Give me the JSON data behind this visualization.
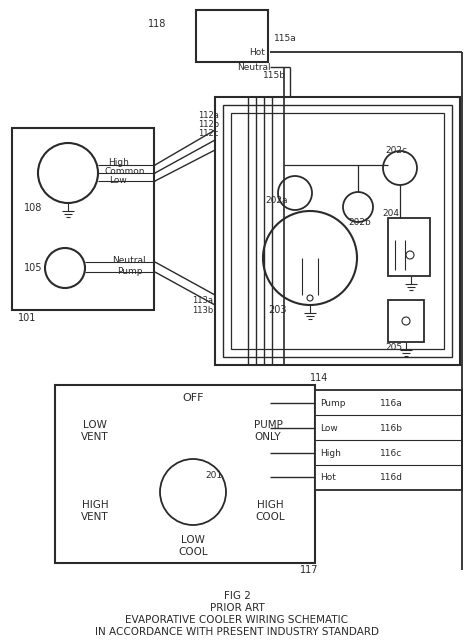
{
  "title_lines": [
    "FIG 2",
    "PRIOR ART",
    "EVAPORATIVE COOLER WIRING SCHEMATIC",
    "IN ACCORDANCE WITH PRESENT INDUSTRY STANDARD"
  ],
  "bg_color": "#ffffff",
  "lc": "#2a2a2a"
}
